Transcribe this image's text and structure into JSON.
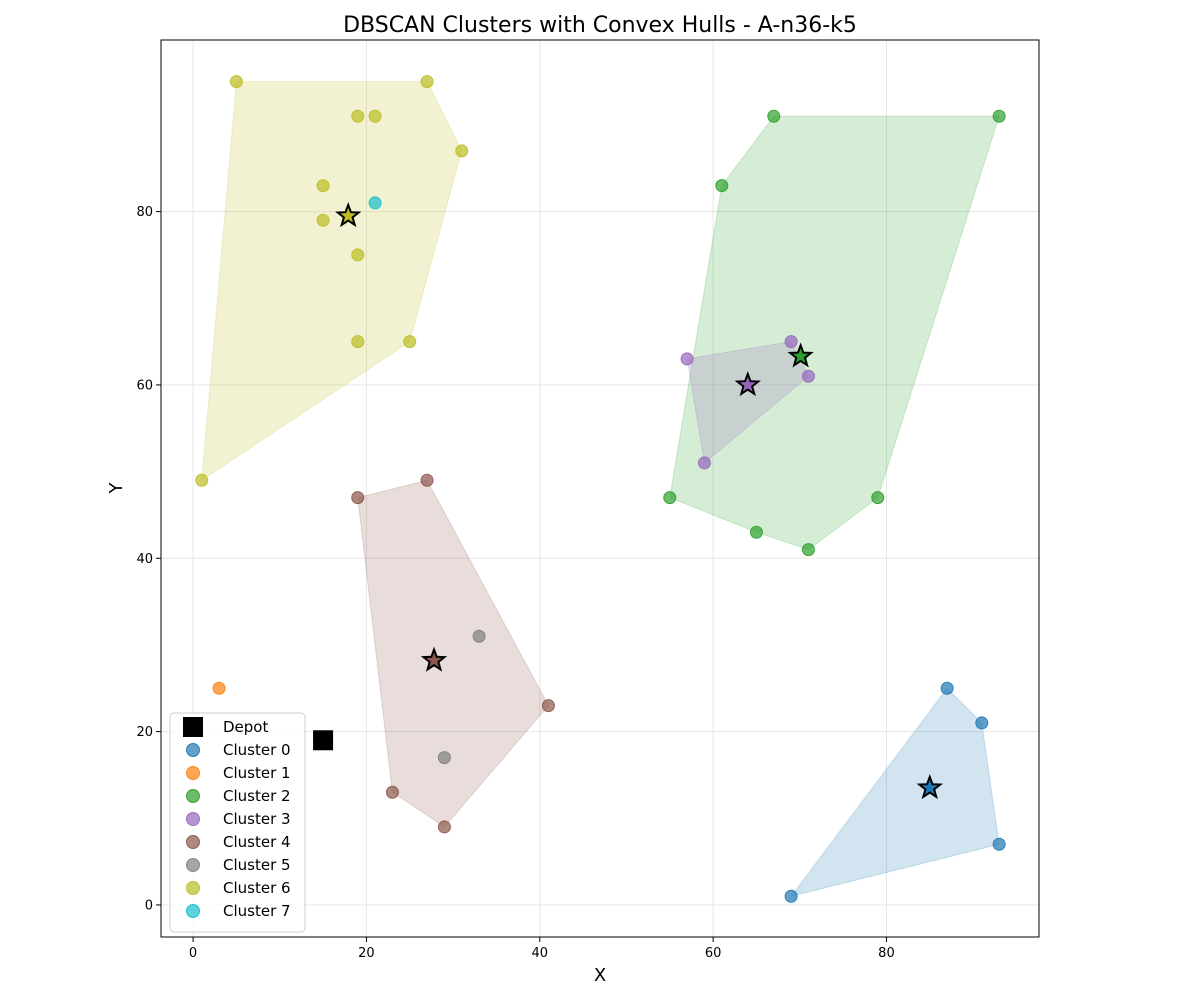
{
  "chart_data": {
    "type": "scatter",
    "title": "DBSCAN Clusters with Convex Hulls - A-n36-k5",
    "xlabel": "X",
    "ylabel": "Y",
    "xlim": [
      -3.7,
      97.6
    ],
    "ylim": [
      -3.7,
      99.8
    ],
    "xticks": [
      0,
      20,
      40,
      60,
      80
    ],
    "yticks": [
      0,
      20,
      40,
      60,
      80
    ],
    "grid": true,
    "legend_position": "lower-left",
    "depot": {
      "name": "Depot",
      "x": 15,
      "y": 19,
      "color": "#000000"
    },
    "series": [
      {
        "name": "Cluster 0",
        "color": "#1f77b4",
        "points": [
          [
            87,
            25
          ],
          [
            91,
            21
          ],
          [
            93,
            7
          ],
          [
            69,
            1
          ]
        ],
        "hull": [
          [
            69,
            1
          ],
          [
            93,
            7
          ],
          [
            91,
            21
          ],
          [
            87,
            25
          ]
        ],
        "centroid": [
          85,
          13.5
        ]
      },
      {
        "name": "Cluster 1",
        "color": "#ff7f0e",
        "points": [
          [
            3,
            25
          ]
        ],
        "hull": [],
        "centroid": null
      },
      {
        "name": "Cluster 2",
        "color": "#2ca02c",
        "points": [
          [
            67,
            91
          ],
          [
            93,
            91
          ],
          [
            61,
            83
          ],
          [
            55,
            47
          ],
          [
            79,
            47
          ],
          [
            65,
            43
          ],
          [
            71,
            41
          ]
        ],
        "hull": [
          [
            71,
            41
          ],
          [
            79,
            47
          ],
          [
            93,
            91
          ],
          [
            67,
            91
          ],
          [
            61,
            83
          ],
          [
            55,
            47
          ],
          [
            65,
            43
          ]
        ],
        "centroid": [
          70.1,
          63.3
        ]
      },
      {
        "name": "Cluster 3",
        "color": "#9467bd",
        "points": [
          [
            69,
            65
          ],
          [
            57,
            63
          ],
          [
            71,
            61
          ],
          [
            59,
            51
          ]
        ],
        "hull": [
          [
            59,
            51
          ],
          [
            71,
            61
          ],
          [
            69,
            65
          ],
          [
            57,
            63
          ]
        ],
        "centroid": [
          64,
          60
        ]
      },
      {
        "name": "Cluster 4",
        "color": "#8c564b",
        "points": [
          [
            27,
            49
          ],
          [
            19,
            47
          ],
          [
            41,
            23
          ],
          [
            23,
            13
          ],
          [
            29,
            9
          ]
        ],
        "hull": [
          [
            29,
            9
          ],
          [
            41,
            23
          ],
          [
            27,
            49
          ],
          [
            19,
            47
          ],
          [
            23,
            13
          ]
        ],
        "centroid": [
          27.8,
          28.2
        ]
      },
      {
        "name": "Cluster 5",
        "color": "#7f7f7f",
        "points": [
          [
            33,
            31
          ],
          [
            29,
            17
          ]
        ],
        "hull": [],
        "centroid": null
      },
      {
        "name": "Cluster 6",
        "color": "#bcbd22",
        "points": [
          [
            5,
            95
          ],
          [
            27,
            95
          ],
          [
            19,
            91
          ],
          [
            21,
            91
          ],
          [
            31,
            87
          ],
          [
            15,
            83
          ],
          [
            15,
            79
          ],
          [
            19,
            75
          ],
          [
            19,
            65
          ],
          [
            25,
            65
          ],
          [
            1,
            49
          ]
        ],
        "hull": [
          [
            1,
            49
          ],
          [
            25,
            65
          ],
          [
            31,
            87
          ],
          [
            27,
            95
          ],
          [
            5,
            95
          ]
        ],
        "centroid": [
          17.9,
          79.5
        ]
      },
      {
        "name": "Cluster 7",
        "color": "#17becf",
        "points": [
          [
            21,
            81
          ]
        ],
        "hull": [],
        "centroid": null
      }
    ]
  }
}
